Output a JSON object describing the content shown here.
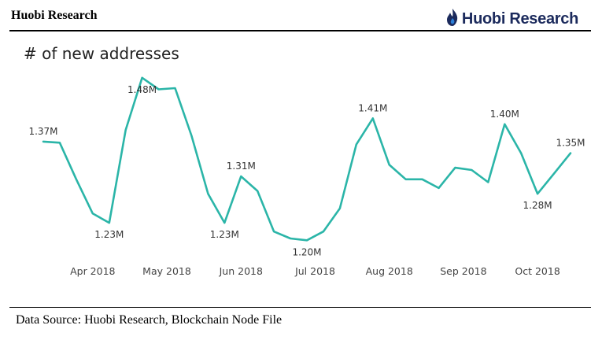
{
  "header": {
    "title": "Huobi Research",
    "brand": "Huobi Research"
  },
  "footer": {
    "source": "Data Source: Huobi Research, Blockchain Node File"
  },
  "colors": {
    "line": "#2bb5a8",
    "brand": "#1b2a5c"
  },
  "chart_data": {
    "type": "line",
    "title": "# of new addresses",
    "xlabel": "",
    "ylabel": "",
    "unit": "M addresses",
    "x": [
      1,
      2,
      3,
      4,
      5,
      6,
      7,
      8,
      9,
      10,
      11,
      12,
      13,
      14,
      15,
      16,
      17,
      18,
      19,
      20,
      21,
      22,
      23,
      24,
      25,
      26,
      27,
      28,
      29,
      30,
      31,
      32,
      33
    ],
    "x_ticks": [
      {
        "label": "Apr 2018",
        "x": 4
      },
      {
        "label": "May 2018",
        "x": 8.5
      },
      {
        "label": "Jun 2018",
        "x": 13
      },
      {
        "label": "Jul 2018",
        "x": 17.5
      },
      {
        "label": "Aug 2018",
        "x": 22
      },
      {
        "label": "Sep 2018",
        "x": 26.5
      },
      {
        "label": "Oct 2018",
        "x": 31
      }
    ],
    "series": [
      {
        "name": "# of new addresses",
        "values": [
          1.37,
          1.368,
          1.305,
          1.246,
          1.23,
          1.39,
          1.48,
          1.46,
          1.462,
          1.38,
          1.28,
          1.23,
          1.31,
          1.285,
          1.215,
          1.203,
          1.2,
          1.215,
          1.255,
          1.365,
          1.41,
          1.33,
          1.305,
          1.305,
          1.29,
          1.325,
          1.321,
          1.3,
          1.4,
          1.35,
          1.28,
          1.315,
          1.35
        ]
      }
    ],
    "data_labels": [
      {
        "index": 0,
        "text": "1.37M",
        "pos": "above"
      },
      {
        "index": 4,
        "text": "1.23M",
        "pos": "below"
      },
      {
        "index": 6,
        "text": "1.48M",
        "pos": "below"
      },
      {
        "index": 11,
        "text": "1.23M",
        "pos": "below"
      },
      {
        "index": 12,
        "text": "1.31M",
        "pos": "above"
      },
      {
        "index": 16,
        "text": "1.20M",
        "pos": "below"
      },
      {
        "index": 20,
        "text": "1.41M",
        "pos": "above"
      },
      {
        "index": 28,
        "text": "1.40M",
        "pos": "above"
      },
      {
        "index": 30,
        "text": "1.28M",
        "pos": "below"
      },
      {
        "index": 32,
        "text": "1.35M",
        "pos": "above"
      }
    ],
    "ylim": [
      1.18,
      1.5
    ],
    "grid": false,
    "legend": "none"
  }
}
